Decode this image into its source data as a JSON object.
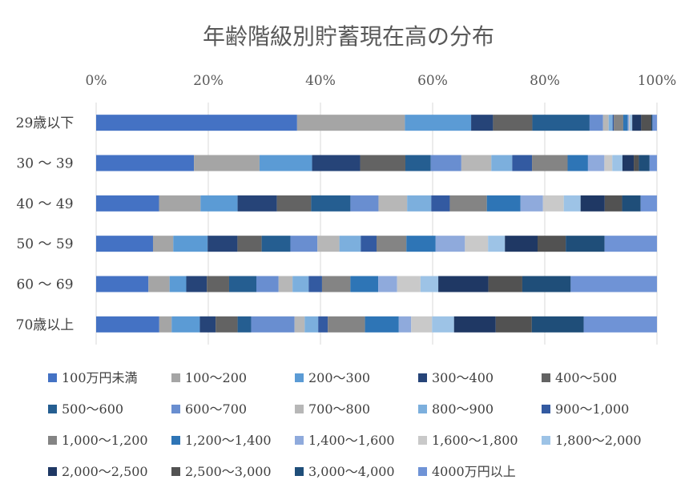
{
  "chart_data": {
    "type": "bar",
    "orientation": "horizontal",
    "stacked": "percent",
    "title": "年齢階級別貯蓄現在高の分布",
    "xlabel": "",
    "ylabel": "",
    "xlim": [
      0,
      100
    ],
    "x_ticks": [
      "0%",
      "20%",
      "40%",
      "60%",
      "80%",
      "100%"
    ],
    "x_tick_values": [
      0,
      20,
      40,
      60,
      80,
      100
    ],
    "grid": "vertical",
    "legend_position": "bottom",
    "categories": [
      "29歳以下",
      "30 ～ 39",
      "40 ～ 49",
      "50 ～ 59",
      "60 ～ 69",
      "70歳以上"
    ],
    "series": [
      {
        "name": "100万円未満",
        "color": "#4472C4",
        "values": [
          35.8,
          17.3,
          11.2,
          10.1,
          9.4,
          11.2
        ]
      },
      {
        "name": "100～200",
        "color": "#A5A5A5",
        "values": [
          19.2,
          11.6,
          7.4,
          3.6,
          3.8,
          2.2
        ]
      },
      {
        "name": "200～300",
        "color": "#5B9BD5",
        "values": [
          11.8,
          9.3,
          6.6,
          6.1,
          3.0,
          5.0
        ]
      },
      {
        "name": "300～400",
        "color": "#264478",
        "values": [
          3.9,
          8.5,
          7.0,
          5.3,
          3.7,
          2.8
        ]
      },
      {
        "name": "400～500",
        "color": "#636363",
        "values": [
          7.0,
          8.0,
          6.1,
          4.3,
          4.0,
          3.9
        ]
      },
      {
        "name": "500～600",
        "color": "#255E91",
        "values": [
          10.2,
          4.5,
          7.0,
          5.1,
          4.9,
          2.4
        ]
      },
      {
        "name": "600～700",
        "color": "#698ED0",
        "values": [
          2.4,
          5.4,
          5.0,
          4.8,
          4.0,
          7.7
        ]
      },
      {
        "name": "700～800",
        "color": "#B7B7B7",
        "values": [
          1.0,
          5.3,
          5.1,
          3.9,
          2.5,
          1.8
        ]
      },
      {
        "name": "800～900",
        "color": "#7CAFDD",
        "values": [
          0.7,
          3.7,
          4.3,
          3.8,
          2.9,
          2.4
        ]
      },
      {
        "name": "900～1,000",
        "color": "#335AA1",
        "values": [
          0.2,
          3.5,
          3.3,
          2.8,
          2.4,
          1.7
        ]
      },
      {
        "name": "1,000～1,200",
        "color": "#848484",
        "values": [
          1.7,
          6.3,
          6.6,
          5.3,
          5.1,
          6.6
        ]
      },
      {
        "name": "1,200～1,400",
        "color": "#2E75B6",
        "values": [
          0.8,
          3.6,
          6.0,
          5.2,
          5.0,
          6.0
        ]
      },
      {
        "name": "1,400～1,600",
        "color": "#8FAADC",
        "values": [
          0.2,
          2.9,
          4.0,
          5.2,
          3.4,
          2.2
        ]
      },
      {
        "name": "1,600～1,800",
        "color": "#C9C9C9",
        "values": [
          0.2,
          1.4,
          3.7,
          4.1,
          4.2,
          3.7
        ]
      },
      {
        "name": "1,800～2,000",
        "color": "#9DC3E6",
        "values": [
          0.4,
          1.8,
          3.0,
          3.0,
          3.2,
          3.9
        ]
      },
      {
        "name": "2,000～2,500",
        "color": "#1F3864",
        "values": [
          1.6,
          2.0,
          4.3,
          5.8,
          9.0,
          7.4
        ]
      },
      {
        "name": "2,500～3,000",
        "color": "#525252",
        "values": [
          1.8,
          0.9,
          3.1,
          5.0,
          6.1,
          6.4
        ]
      },
      {
        "name": "3,000～4,000",
        "color": "#1F4E79",
        "values": [
          0.2,
          1.9,
          3.3,
          6.9,
          8.7,
          9.2
        ]
      },
      {
        "name": "4000万円以上",
        "color": "#6F93D6",
        "values": [
          0.8,
          1.3,
          2.9,
          9.3,
          15.5,
          13.0
        ]
      }
    ]
  }
}
